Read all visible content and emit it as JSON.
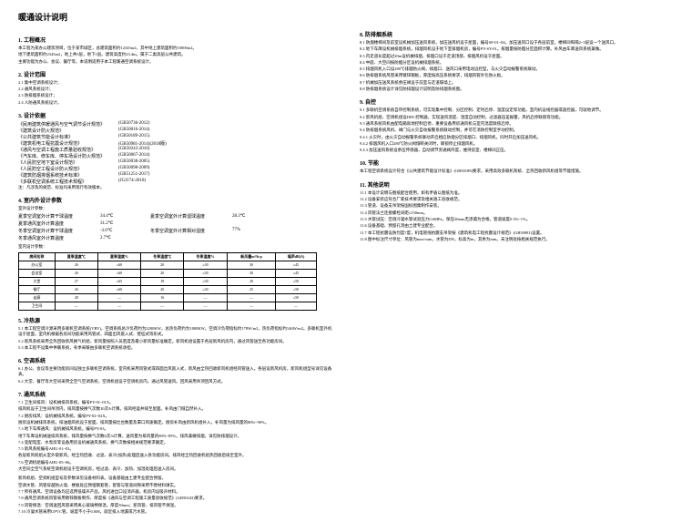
{
  "title": "暖通设计说明",
  "s1": {
    "heading": "1. 工程概况",
    "lines": [
      "本工程为某办公建筑项目，位于某市城区，总建筑面积约12345m2，其中地上建筑面积约10000m2。",
      "地下建筑面积约2345m2，地上共5层，地下1层。建筑高度约23.4m，属于二类高层公共建筑。",
      "主要功能为办公、会议、餐厅等。本说明适用于本工程暖通空调系统设计。"
    ]
  },
  "s2": {
    "heading": "2. 设计范围",
    "items": [
      "2.1 集中空调系统设计；",
      "2.2 通风系统设计；",
      "2.3 防排烟系统设计；",
      "2.4 人防通风系统设计。"
    ]
  },
  "s3": {
    "heading": "3. 设计依据",
    "specs": [
      {
        "label": "《民用建筑供暖通风与空气调节设计规范》",
        "code": "(GB50736-2012)"
      },
      {
        "label": "《建筑设计防火规范》",
        "code": "(GB50016-2014)"
      },
      {
        "label": "《公共建筑节能设计标准》",
        "code": "(GB50189-2015)"
      },
      {
        "label": "《建筑机电工程抗震设计规范》",
        "code": "(GB50981-2014)(2018版)"
      },
      {
        "label": "《通风与空调工程施工质量验收规范》",
        "code": "(GB50243-2016)"
      },
      {
        "label": "《汽车库、修车库、停车场设计防火规范》",
        "code": "(GB50067-2014)"
      },
      {
        "label": "《人民防空地下室设计规范》",
        "code": "(GB50038-2005)"
      },
      {
        "label": "《人民防空工程设计防火规范》",
        "code": "(GB50098-2009)"
      },
      {
        "label": "《建筑防烟排烟系统技术标准》",
        "code": "(GB51251-2017)"
      },
      {
        "label": "《多联机空调系统工程技术规程》",
        "code": "(JGJ174-2010)"
      }
    ],
    "note": "注：凡涉及的规范、标准均采用现行有效版本。"
  },
  "s4": {
    "heading": "4. 室内外设计参数",
    "sub1": "室外设计参数：",
    "params": [
      {
        "l1": "夏季空调室外计算干球温度",
        "v1": "34.4℃",
        "l2": "夏季空调室外计算湿球温度",
        "v2": "28.3℃"
      },
      {
        "l1": "夏季通风室外计算温度",
        "v1": "31.2℃",
        "l2": "",
        "v2": ""
      },
      {
        "l1": "冬季空调室外计算干球温度",
        "v1": "-3.6℃",
        "l2": "冬季空调室外计算相对湿度",
        "v2": "77%"
      },
      {
        "l1": "冬季通风室外计算温度",
        "v1": "2.7℃",
        "l2": "",
        "v2": ""
      }
    ],
    "sub2": "室内设计参数：",
    "table": {
      "headers": [
        "房间名称",
        "夏季温度℃",
        "夏季湿度%",
        "冬季温度℃",
        "冬季湿度%",
        "新风量m³/h·p",
        "噪声dB(A)"
      ],
      "rows": [
        [
          "办公室",
          "26",
          "≤60",
          "20",
          "≥30",
          "30",
          "≤45"
        ],
        [
          "会议室",
          "26",
          "≤60",
          "20",
          "≥30",
          "30",
          "≤45"
        ],
        [
          "大堂",
          "27",
          "≤65",
          "18",
          "≥30",
          "20",
          "≤50"
        ],
        [
          "餐厅",
          "26",
          "≤60",
          "20",
          "≥30",
          "25",
          "≤50"
        ],
        [
          "走廊",
          "28",
          "—",
          "16",
          "—",
          "—",
          "≤50"
        ],
        [
          "卫生间",
          "—",
          "—",
          "—",
          "—",
          "—",
          "—"
        ]
      ]
    }
  },
  "s5": {
    "heading": "5. 冷热源",
    "items": [
      "5.1 本工程空调冷源采用多联机空调系统(VRV)。空调系统总冷负荷约为2200KW，总热负荷约为1800KW。空调冷负荷指标约178W/m2，热负荷指标约146W/m2。多联机室外机设于屋面，室内机根据各房间功能采用风管式、四面出风嵌入式、壁挂式等形式。",
      "5.2 新风系统采用全热回收新风换气机组，新风量按照人员密度及最小新风量标准确定。新风机组设置于各层新风机房内，通过风管送至各功能房间。",
      "5.3 本工程不设集中供暖系统，冬季采暖由多联机空调系统承担。"
    ]
  },
  "s6": {
    "heading": "6. 空调系统",
    "items": [
      "6.1 办公、会议等主要功能房间设独立多联机空调系统，室内机采用风管式或四面出风嵌入式，新风由全热回收新风机组经风管送入。各层设新风机房，新风机组型号详见设备表。",
      "6.2 大堂、餐厅等大空间采用全空气空调系统，空调机组设于空调机房内，通过风管送风。回风采用吊顶回风方式。"
    ]
  },
  "s7": {
    "heading": "7. 通风系统",
    "items": [
      "7.1 卫生间排风：设机械排风系统，编号PY-01~01X。",
      "    排风机设于卫生间吊顶内，排风量按换气次数10次/h计算。排风经竖井排至屋面。补风由门缝自然补入。",
      "7.2 厨房排风：设机械排风系统，编号PY-02~02X。",
      "    厨房设机械排风系统，排油烟风机设于屋面，排风量按灶台数量及罩口风速确定。厨房补风由新风机组补入，补风量为排风量的80%~90%。",
      "7.3 地下车库通风：设机械排风系统，编号PY-03。",
      "    地下车库设机械送排风系统，排风量按换气次数6次/h计算，送风量为排风量的80%~85%。排风兼做排烟，详见防排烟设计。",
      "7.4 变配电室、水泵房等设备用房设机械通风系统，换气次数按相关规范要求确定。",
      "7.5 新风系统编号AHU-01~03。",
      "    各层新风机组从室外取新风，经全热回收、过滤、表冷(加热)处理后送入各功能房间。排风经全热回收机组热回收后排至室外。",
      "7.6 空调机组编号AHU-05~06。",
      "    大空间全空气系统空调机组设于空调机房，经过滤、表冷、加热、加湿处理后送入房间。"
    ]
  },
  "s7b": {
    "items": [
      "新风机组、空调机组型号及参数详见设备材料表。设备基础由土建专业配合预留。",
      "空调水管、风管穿越防火墙、楼板处应预埋钢套管，套管与管道间隙采用不燃材料填实。",
      "7.7 所有通风、空调设备均应选用低噪声产品，风机进出口设消声器，机房内设吸声材料。",
      "7.8 通风空调系统风管采用镀锌钢板制作，厚度按《通风与空调工程施工质量验收规范》(GB50243)要求。",
      "7.9 风管保温：空调送回风管采用离心玻璃棉保温，厚度30mm；新风管、排风管不保温。",
      "7.10 冷凝水管采用UPVC管，坡度不小于0.008，就近排入地漏或污水管。"
    ]
  },
  "s8": {
    "heading": "8. 防排烟系统",
    "items": [
      "8.1 防烟楼梯间及前室设机械加压送风系统，加压送风机设于屋面，编号SF-01~04。加压送风口设于各层前室，楼梯间每隔2~3层设一个送风口。",
      "8.2 地下车库设机械排烟系统，排烟风机设于地下室排烟机房，编号PY-SY-01。排烟量按防烟分区面积计算。补风由车库送风系统兼做。",
      "8.3 内走道长度超过20m设机械排烟，排烟口设于走道顶部，排烟风机设于屋面。",
      "8.4 中庭、大空间按防烟分区设机械排烟系统。",
      "8.5 排烟风机入口设280℃排烟防火阀，排烟口、送风口采用电动远控型，与火灾自动报警系统联动。",
      "8.6 防排烟系统风管采用镀锌钢板，厚度按高压系统要求，排烟风管外包防火板。",
      "8.7 机械加压送风系统余压阀设于前室与走道隔墙上。",
      "8.8 防排烟系统设计详见防排烟设计说明及防排烟系统图。"
    ]
  },
  "s9": {
    "heading": "9. 自控",
    "items": [
      "9.1 多联机空调系统自带控制系统，可实现集中控制、分区控制、定时启停、温度设定等功能。室内机设线控器或遥控器，可就地调节。",
      "9.2 新风机组、空调机组设DDC控制器，实现送风温度、湿度自动控制，过滤器压差报警，风机启停联锁等功能。",
      "9.3 通风系统风机由配电箱就地控制启停，重要设备用房通风机与室内温度联锁启停。",
      "9.4 防排烟系统风机、阀门与火灾自动报警系统联动控制，并可在消防控制室手动控制。",
      "9.4.1 火灾时，由火灾自动报警系统联动开启相应防烟分区排烟口、排烟风机，同时开启加压送风机。",
      "9.4.2 排烟风机入口280℃防火阀熔断关闭时，联锁停止排烟风机。",
      "9.4.3 加压送风系统设余压传感器，自动调节旁通阀开度，维持前室、楼梯间正压。"
    ]
  },
  "s10": {
    "heading": "10. 节能",
    "items": [
      "本工程空调系统设计符合《公共建筑节能设计标准》(GB50189)要求。采用高效多联机系统、全热回收新风机组等节能措施。"
    ]
  },
  "s11": {
    "heading": "11. 其他说明",
    "items": [
      "11.1 本设计说明与图纸配合使用，如有矛盾以图纸为准。",
      "11.2 设备安装应符合厂家技术要求及相关施工验收规范。",
      "11.3 管道、设备支吊架按国标图集制作安装。",
      "11.4 风管法兰连接螺栓间距≤150mm。",
      "11.5 水管试压：空调冷凝水管试验压力0.6MPa，保压30min无渗漏为合格。管道坡度0.3%~1%。",
      "11.6 设备基础、预留孔洞由土建专业配合。",
      "11.7 本工程抗震设防烈度7度，机电管线抗震支吊架按《建筑机电工程抗震设计规范》(GB50981)设置。",
      "11.8 图中标注尺寸单位：风管为mm×mm，水管为DN，标高为m，其余为mm。未注明处按相关规范执行。"
    ]
  }
}
